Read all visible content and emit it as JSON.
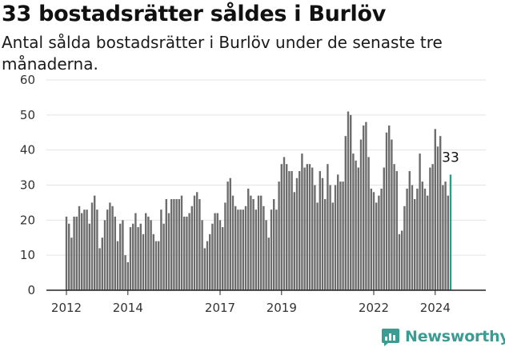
{
  "title": "33 bostadsrätter såldes i Burlöv",
  "subtitle": "Antal sålda bostadsrätter i Burlöv under de senaste tre månaderna.",
  "brand": "Newsworthy",
  "colors": {
    "bar": "#6d6d6d",
    "highlight": "#2a9d8f",
    "grid": "#e3e3e3",
    "axis": "#222222",
    "brand": "#3a9c93"
  },
  "chart_data": {
    "type": "bar",
    "title": "33 bostadsrätter såldes i Burlöv",
    "subtitle": "Antal sålda bostadsrätter i Burlöv under de senaste tre månaderna.",
    "xlabel": "",
    "ylabel": "",
    "ylim": [
      0,
      60
    ],
    "yticks": [
      0,
      10,
      20,
      30,
      40,
      50,
      60
    ],
    "xticks": [
      {
        "label": "2012",
        "index": 0
      },
      {
        "label": "2014",
        "index": 24
      },
      {
        "label": "2017",
        "index": 60
      },
      {
        "label": "2019",
        "index": 84
      },
      {
        "label": "2022",
        "index": 120
      },
      {
        "label": "2024",
        "index": 144
      }
    ],
    "grid": true,
    "start": "2012-01",
    "frequency": "monthly",
    "values": [
      21,
      19,
      15,
      21,
      21,
      24,
      22,
      23,
      23,
      19,
      25,
      27,
      23,
      12,
      15,
      20,
      23,
      25,
      24,
      21,
      14,
      19,
      20,
      10,
      8,
      18,
      19,
      22,
      18,
      19,
      16,
      22,
      21,
      20,
      16,
      14,
      14,
      23,
      19,
      26,
      22,
      26,
      26,
      26,
      26,
      27,
      21,
      21,
      22,
      24,
      27,
      28,
      26,
      20,
      12,
      14,
      16,
      19,
      22,
      22,
      20,
      18,
      25,
      31,
      32,
      27,
      24,
      23,
      23,
      23,
      24,
      29,
      27,
      26,
      23,
      27,
      27,
      24,
      20,
      15,
      23,
      26,
      23,
      31,
      36,
      38,
      36,
      34,
      34,
      28,
      32,
      34,
      39,
      35,
      36,
      36,
      35,
      30,
      25,
      34,
      32,
      26,
      36,
      30,
      25,
      30,
      33,
      31,
      31,
      44,
      51,
      50,
      39,
      37,
      35,
      43,
      47,
      48,
      38,
      29,
      28,
      25,
      27,
      29,
      35,
      45,
      47,
      43,
      36,
      34,
      16,
      17,
      24,
      29,
      34,
      30,
      26,
      29,
      39,
      31,
      29,
      27,
      35,
      36,
      46,
      41,
      44,
      30,
      31,
      27,
      33
    ],
    "highlight_index": 150,
    "annotation": {
      "label": "33",
      "index": 150
    }
  }
}
